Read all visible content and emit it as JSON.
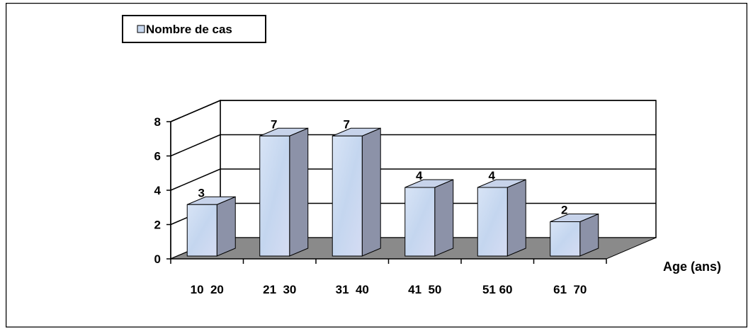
{
  "chart_data": {
    "type": "bar",
    "style": "3d",
    "categories": [
      "10  20",
      "21  30",
      "31  40",
      "41  50",
      "51 60",
      "61  70"
    ],
    "series": [
      {
        "name": "Nombre de cas",
        "values": [
          3,
          7,
          7,
          4,
          4,
          2
        ]
      }
    ],
    "xlabel": "Age (ans)",
    "ylabel": "",
    "ylim": [
      0,
      8
    ],
    "yticks": [
      0,
      2,
      4,
      6,
      8
    ],
    "grid": true,
    "legend_position": "top-left",
    "data_labels": true,
    "colors": {
      "bar_front": "#c9d9f0",
      "bar_side": "#8c92a8",
      "bar_top": "#c7d3ea",
      "floor": "#8a8a8a",
      "wall": "#ffffff",
      "grid": "#000000"
    }
  }
}
